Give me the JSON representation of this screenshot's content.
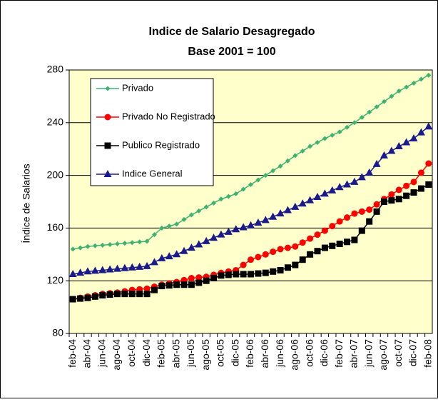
{
  "chart_data": {
    "type": "line",
    "title": "Indice de Salario Desagregado",
    "subtitle": "Base 2001 = 100",
    "y_label": "Índice de Salarios",
    "categories": [
      "feb-04",
      null,
      "abr-04",
      null,
      "jun-04",
      null,
      "ago-04",
      null,
      "oct-04",
      null,
      "dic-04",
      null,
      "feb-05",
      null,
      "abr-05",
      null,
      "jun-05",
      null,
      "ago-05",
      null,
      "oct-05",
      null,
      "dic-05",
      null,
      "feb-06",
      null,
      "abr-06",
      null,
      "jun-06",
      null,
      "ago-06",
      null,
      "oct-06",
      null,
      "dic-06",
      null,
      "feb-07",
      null,
      "abr-07",
      null,
      "jun-07",
      null,
      "ago-07",
      null,
      "oct-07",
      null,
      "dic-07",
      null,
      "feb-08"
    ],
    "series": [
      {
        "name": "Privado",
        "color": "#3cb371",
        "marker": "diamond",
        "values": [
          144,
          145,
          146,
          146.5,
          147,
          147.5,
          148,
          148.5,
          149,
          149.5,
          150,
          155,
          160,
          161.5,
          163,
          166.5,
          170,
          173,
          176,
          179,
          182,
          184,
          186,
          189.5,
          193,
          196.5,
          200,
          203.5,
          207,
          211,
          215,
          218.5,
          222,
          225,
          228,
          230.5,
          233,
          236.5,
          240,
          244,
          248,
          252,
          256,
          260,
          264,
          267,
          270,
          273,
          276
        ]
      },
      {
        "name": "Privado No Registrado",
        "color": "#ff0000",
        "marker": "circle",
        "values": [
          106,
          107,
          108,
          109,
          110,
          110.5,
          111,
          112,
          113,
          113.5,
          114,
          115.5,
          117,
          118,
          119,
          120.5,
          122,
          122.5,
          123,
          124.5,
          126,
          127,
          128,
          132,
          136,
          138,
          140,
          142,
          144,
          145,
          146,
          149,
          152,
          155,
          158,
          161.5,
          165,
          168,
          171,
          172.5,
          174,
          178,
          182,
          185.5,
          189,
          192,
          195,
          202,
          209
        ]
      },
      {
        "name": "Publico Registrado",
        "color": "#000000",
        "marker": "square",
        "values": [
          106,
          106.5,
          107,
          108,
          109,
          109.5,
          110,
          110,
          110,
          110,
          110,
          113,
          116,
          116.5,
          117,
          117,
          117,
          118.5,
          120,
          122,
          124,
          124.5,
          125,
          125,
          125,
          125.5,
          126,
          127,
          128,
          130,
          132,
          136,
          140,
          142.5,
          145,
          146.5,
          148,
          149.5,
          151,
          158,
          165,
          172.5,
          180,
          181,
          182,
          184.5,
          187,
          190,
          193
        ]
      },
      {
        "name": "Indice General",
        "color": "#1a1a8c",
        "marker": "triangle",
        "values": [
          125,
          126,
          127,
          127.5,
          128,
          128.5,
          129,
          129.5,
          130,
          130.5,
          131,
          134,
          137,
          138.5,
          140,
          142.5,
          145,
          147.5,
          150,
          152.5,
          155,
          157,
          159,
          160.5,
          162,
          164,
          166,
          168.5,
          171,
          173.5,
          176,
          178.5,
          181,
          183.5,
          186,
          188.5,
          191,
          193,
          195,
          198.5,
          202,
          208.5,
          215,
          218.5,
          222,
          225,
          228,
          232.5,
          237
        ]
      }
    ],
    "ylim": [
      80,
      280
    ],
    "yticks": [
      80,
      120,
      160,
      200,
      240,
      280
    ],
    "grid": true,
    "legend": "upper left",
    "plot_background": "#ffffcc"
  }
}
